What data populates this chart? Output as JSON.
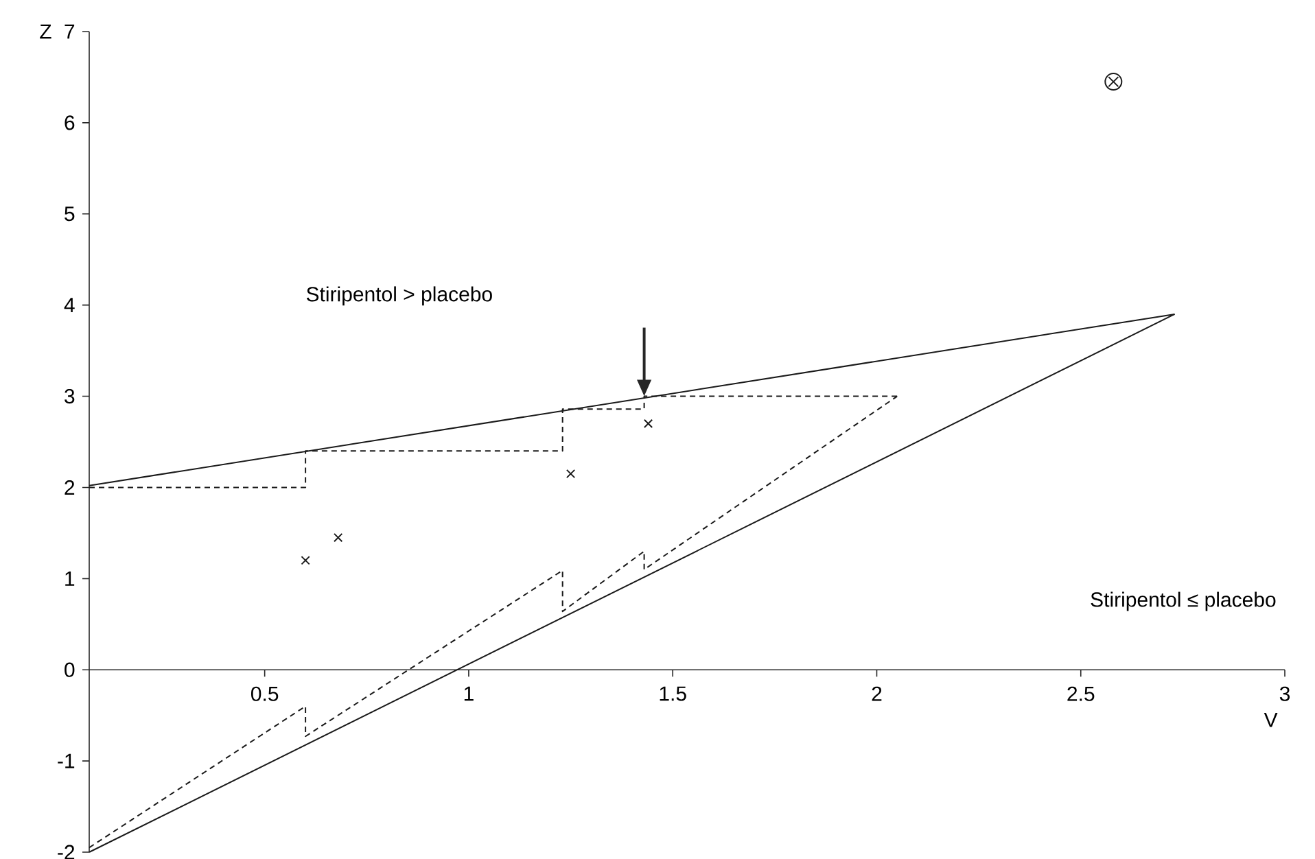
{
  "chart_data": {
    "type": "line",
    "xlabel": "V",
    "ylabel": "Z",
    "xlim": [
      0.07,
      3
    ],
    "ylim": [
      -2,
      7
    ],
    "xticks": [
      0.5,
      1,
      1.5,
      2,
      2.5,
      3
    ],
    "yticks": [
      -2,
      -1,
      0,
      1,
      2,
      3,
      4,
      5,
      6,
      7
    ],
    "grid": false,
    "series": [
      {
        "line_style": "solid",
        "color": "#1a1a1a",
        "x": [
          0.07,
          2.73
        ],
        "values": [
          2.02,
          3.9
        ]
      },
      {
        "line_style": "solid",
        "color": "#1a1a1a",
        "x": [
          0.07,
          2.73
        ],
        "values": [
          -2,
          3.9
        ]
      },
      {
        "line_style": "dashed",
        "color": "#1a1a1a",
        "x": [
          0.07,
          0.6,
          0.6,
          1.23,
          1.23,
          1.43,
          1.43,
          2.05
        ],
        "values": [
          2,
          2,
          2.4,
          2.4,
          2.86,
          2.86,
          3.0,
          3.0
        ]
      },
      {
        "line_style": "dashed",
        "color": "#1a1a1a",
        "x": [
          0.07,
          0.6,
          0.6,
          1.23,
          1.23,
          1.43,
          1.43,
          2.05
        ],
        "values": [
          -1.95,
          -0.4,
          -0.73,
          1.09,
          0.64,
          1.3,
          1.1,
          3.0
        ]
      },
      {
        "type": "scatter",
        "marker": "cross",
        "color": "#1a1a1a",
        "x": [
          0.6,
          0.68,
          1.25,
          1.44
        ],
        "values": [
          1.2,
          1.45,
          2.15,
          2.7
        ]
      },
      {
        "type": "scatter",
        "marker": "circle",
        "color": "#1a1a1a",
        "x": [
          2.58
        ],
        "values": [
          6.45
        ]
      }
    ],
    "annotations": [
      "Stiripentol > placebo",
      "Stiripentol ≤ placebo"
    ]
  }
}
